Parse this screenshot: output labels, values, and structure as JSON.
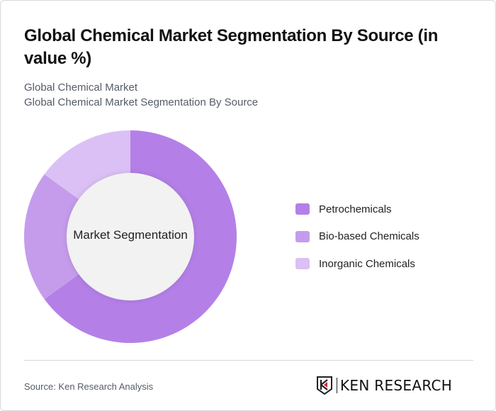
{
  "header": {
    "title": "Global Chemical Market Segmentation By Source (in value %)",
    "subtitle_line1": "Global Chemical Market",
    "subtitle_line2": "Global Chemical Market Segmentation By Source"
  },
  "chart": {
    "center_label": "Market Segmentation"
  },
  "legend": {
    "items": [
      {
        "label": "Petrochemicals",
        "color": "#b480e8"
      },
      {
        "label": "Bio-based Chemicals",
        "color": "#c59cec"
      },
      {
        "label": "Inorganic Chemicals",
        "color": "#dbc0f5"
      }
    ]
  },
  "footer": {
    "source": "Source: Ken Research Analysis",
    "logo_text": "KEN RESEARCH"
  },
  "chart_data": {
    "type": "pie",
    "variant": "donut",
    "title": "Global Chemical Market Segmentation By Source (in value %)",
    "subtitle": "Global Chemical Market / Global Chemical Market Segmentation By Source",
    "center_label": "Market Segmentation",
    "categories": [
      "Petrochemicals",
      "Bio-based Chemicals",
      "Inorganic Chemicals"
    ],
    "values": [
      65,
      20,
      15
    ],
    "colors": [
      "#b480e8",
      "#c59cec",
      "#dbc0f5"
    ],
    "unit": "%",
    "legend_position": "right",
    "start_angle": "12 o'clock, clockwise"
  }
}
